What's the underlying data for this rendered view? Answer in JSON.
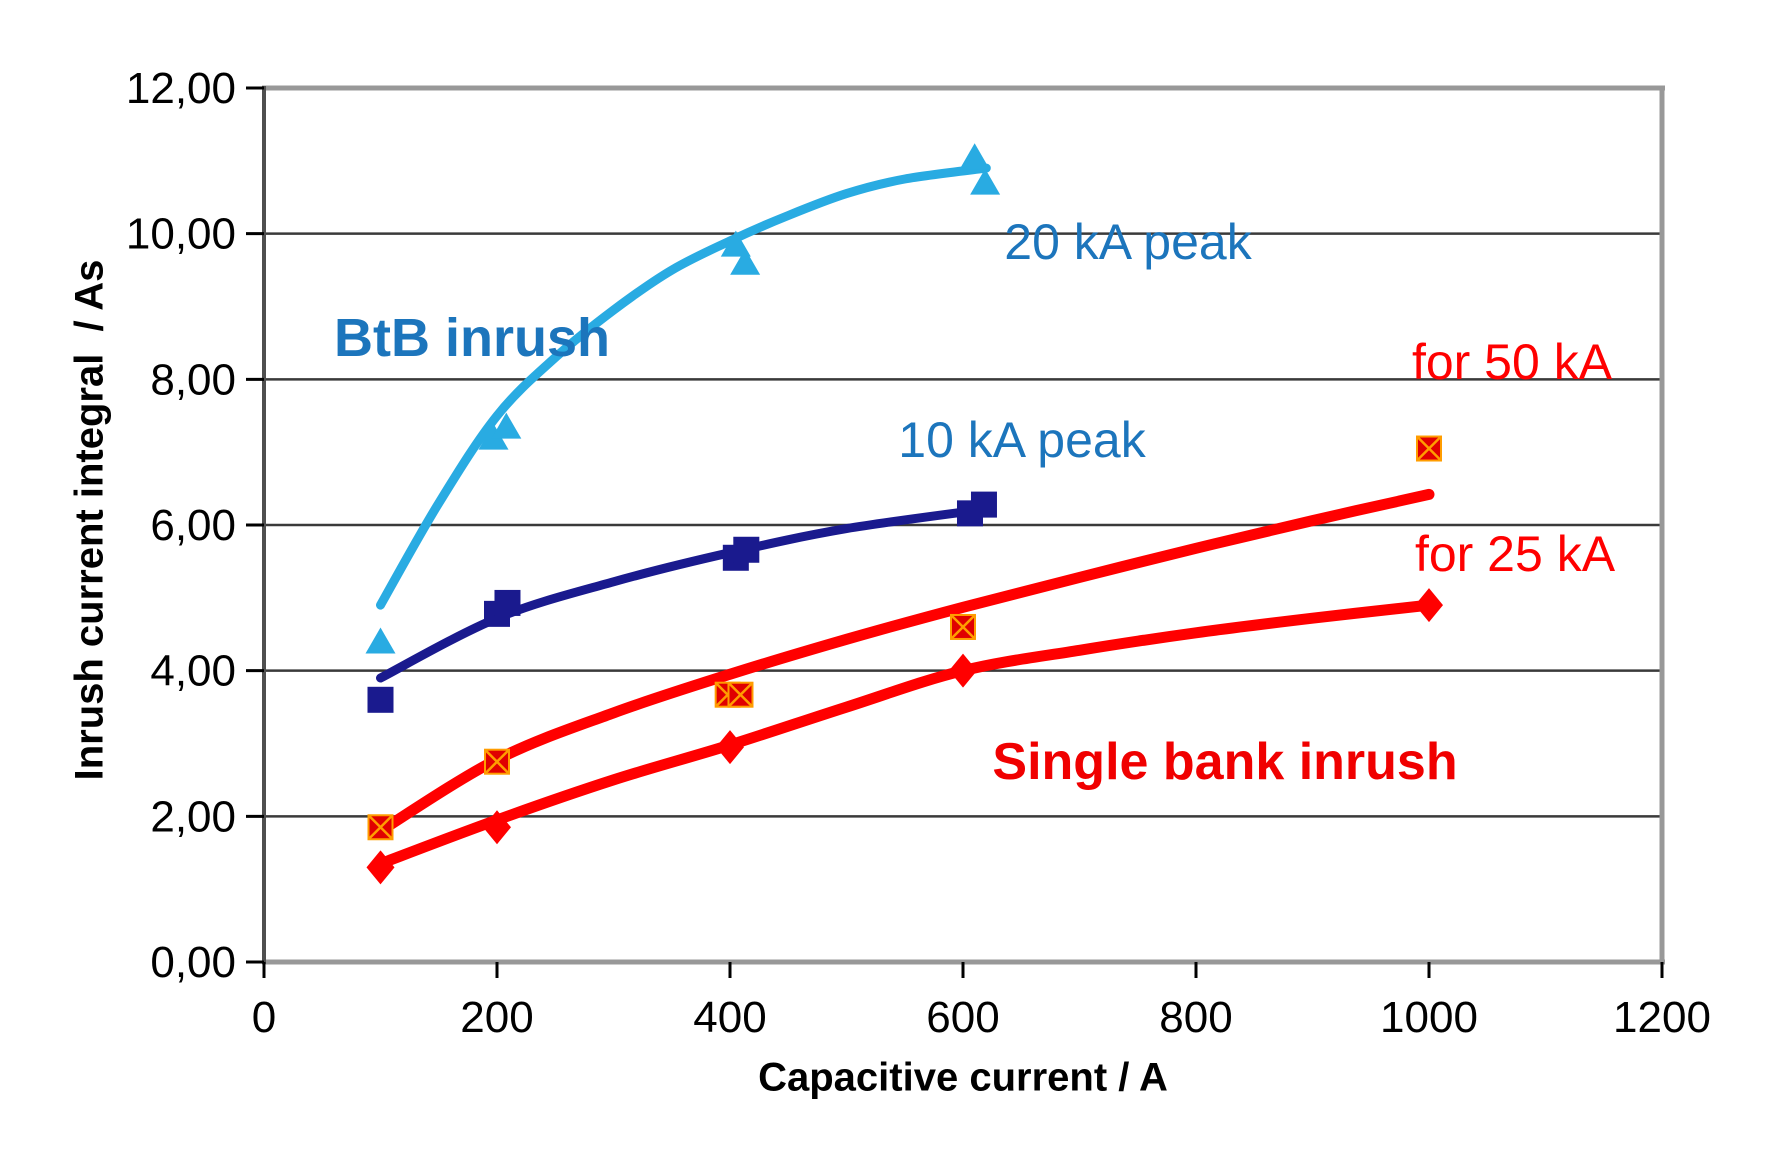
{
  "chart_data": {
    "type": "scatter",
    "title": "",
    "xlabel": "Capacitive current / A",
    "ylabel": "Inrush current integral  / As",
    "xlim": [
      0,
      1200
    ],
    "ylim": [
      0,
      12
    ],
    "grid": "horizontal",
    "legend_position": "none (inline text annotations)",
    "x_ticks": [
      {
        "value": 0,
        "label": "0"
      },
      {
        "value": 200,
        "label": "200"
      },
      {
        "value": 400,
        "label": "400"
      },
      {
        "value": 600,
        "label": "600"
      },
      {
        "value": 800,
        "label": "800"
      },
      {
        "value": 1000,
        "label": "1000"
      },
      {
        "value": 1200,
        "label": "1200"
      }
    ],
    "y_ticks": [
      {
        "value": 0,
        "label": "0,00"
      },
      {
        "value": 2,
        "label": "2,00"
      },
      {
        "value": 4,
        "label": "4,00"
      },
      {
        "value": 6,
        "label": "6,00"
      },
      {
        "value": 8,
        "label": "8,00"
      },
      {
        "value": 10,
        "label": "10,00"
      },
      {
        "value": 12,
        "label": "12,00"
      }
    ],
    "series": [
      {
        "id": "btb-20ka",
        "name": "BtB inrush - 20 kA peak",
        "marker": "triangle",
        "color": "#29abe2",
        "points": [
          [
            100,
            4.4
          ],
          [
            197,
            7.2
          ],
          [
            208,
            7.35
          ],
          [
            405,
            9.85
          ],
          [
            413,
            9.6
          ],
          [
            610,
            11.05
          ],
          [
            619,
            10.7
          ]
        ],
        "trend": [
          [
            100,
            4.9
          ],
          [
            150,
            6.3
          ],
          [
            200,
            7.5
          ],
          [
            250,
            8.3
          ],
          [
            300,
            8.95
          ],
          [
            350,
            9.5
          ],
          [
            400,
            9.9
          ],
          [
            450,
            10.25
          ],
          [
            500,
            10.55
          ],
          [
            550,
            10.75
          ],
          [
            620,
            10.9
          ]
        ]
      },
      {
        "id": "btb-10ka",
        "name": "BtB inrush - 10 kA peak",
        "marker": "square",
        "color": "#1a1a8e",
        "points": [
          [
            100,
            3.6
          ],
          [
            200,
            4.78
          ],
          [
            209,
            4.93
          ],
          [
            405,
            5.55
          ],
          [
            414,
            5.66
          ],
          [
            606,
            6.16
          ],
          [
            618,
            6.28
          ]
        ],
        "trend": [
          [
            100,
            3.9
          ],
          [
            200,
            4.72
          ],
          [
            300,
            5.22
          ],
          [
            400,
            5.62
          ],
          [
            500,
            5.95
          ],
          [
            620,
            6.22
          ]
        ]
      },
      {
        "id": "single-50ka",
        "name": "Single bank inrush - for 50 kA",
        "marker": "x-square",
        "color": "#ff0000",
        "marker_fill": "#e00000",
        "marker_cross": "#ff9d00",
        "points": [
          [
            100,
            1.85
          ],
          [
            200,
            2.75
          ],
          [
            398,
            3.67
          ],
          [
            409,
            3.67
          ],
          [
            600,
            4.6
          ],
          [
            1000,
            7.05
          ]
        ],
        "trend": [
          [
            100,
            1.8
          ],
          [
            200,
            2.78
          ],
          [
            300,
            3.42
          ],
          [
            400,
            3.95
          ],
          [
            500,
            4.43
          ],
          [
            600,
            4.87
          ],
          [
            700,
            5.28
          ],
          [
            800,
            5.68
          ],
          [
            900,
            6.06
          ],
          [
            1000,
            6.42
          ]
        ]
      },
      {
        "id": "single-25ka",
        "name": "Single bank inrush - for 25 kA",
        "marker": "diamond",
        "color": "#ff0000",
        "points": [
          [
            100,
            1.3
          ],
          [
            200,
            1.85
          ],
          [
            400,
            2.95
          ],
          [
            600,
            4.0
          ],
          [
            1000,
            4.9
          ]
        ],
        "trend": [
          [
            100,
            1.35
          ],
          [
            200,
            1.95
          ],
          [
            300,
            2.5
          ],
          [
            400,
            2.98
          ],
          [
            500,
            3.5
          ],
          [
            600,
            4.0
          ],
          [
            700,
            4.28
          ],
          [
            800,
            4.52
          ],
          [
            900,
            4.72
          ],
          [
            1000,
            4.9
          ]
        ]
      }
    ],
    "annotations": [
      {
        "id": "btb-inrush",
        "text": "BtB inrush",
        "color": "#1c75bc",
        "bold": true
      },
      {
        "id": "peak-20ka",
        "text": "20 kA peak",
        "color": "#1c75bc",
        "bold": false
      },
      {
        "id": "for-50ka",
        "text": "for 50 kA",
        "color": "#ff0000",
        "bold": false
      },
      {
        "id": "peak-10ka",
        "text": "10 kA peak",
        "color": "#1c75bc",
        "bold": false
      },
      {
        "id": "for-25ka",
        "text": "for 25 kA",
        "color": "#ff0000",
        "bold": false
      },
      {
        "id": "single-bank-inrush",
        "text": "Single bank inrush",
        "color": "#f00000",
        "bold": true
      }
    ],
    "colors": {
      "gridline": "#3a3a3a",
      "frame": "#989898",
      "y_axis": "#4f4f4f",
      "tick": "#000000",
      "tick_label": "#000000"
    }
  }
}
